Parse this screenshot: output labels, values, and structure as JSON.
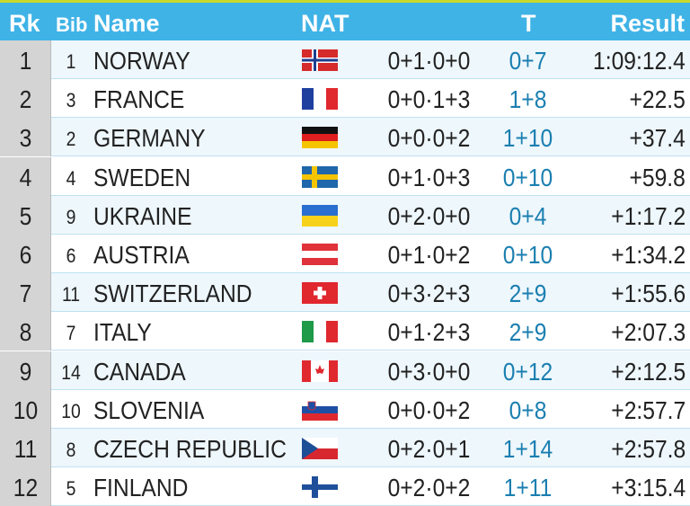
{
  "header": {
    "rank": "Rk",
    "bib": "Bib",
    "name": "Name",
    "nat": "NAT",
    "t": "T",
    "result": "Result"
  },
  "rows": [
    [
      "1",
      "1",
      "NORWAY",
      "0+1·0+0",
      "0+7",
      "1:09:12.4"
    ],
    [
      "2",
      "3",
      "FRANCE",
      "0+0·1+3",
      "1+8",
      "+22.5"
    ],
    [
      "3",
      "2",
      "GERMANY",
      "0+0·0+2",
      "1+10",
      "+37.4"
    ],
    [
      "4",
      "4",
      "SWEDEN",
      "0+1·0+3",
      "0+10",
      "+59.8"
    ],
    [
      "5",
      "9",
      "UKRAINE",
      "0+2·0+0",
      "0+4",
      "+1:17.2"
    ],
    [
      "6",
      "6",
      "AUSTRIA",
      "0+1·0+2",
      "0+10",
      "+1:34.2"
    ],
    [
      "7",
      "11",
      "SWITZERLAND",
      "0+3·2+3",
      "2+9",
      "+1:55.6"
    ],
    [
      "8",
      "7",
      "ITALY",
      "0+1·2+3",
      "2+9",
      "+2:07.3"
    ],
    [
      "9",
      "14",
      "CANADA",
      "0+3·0+0",
      "0+12",
      "+2:12.5"
    ],
    [
      "10",
      "10",
      "SLOVENIA",
      "0+0·0+2",
      "0+8",
      "+2:57.7"
    ],
    [
      "11",
      "8",
      "CZECH REPUBLIC",
      "0+2·0+1",
      "1+14",
      "+2:57.8"
    ],
    [
      "12",
      "5",
      "FINLAND",
      "0+2·0+2",
      "1+11",
      "+3:15.4"
    ]
  ]
}
